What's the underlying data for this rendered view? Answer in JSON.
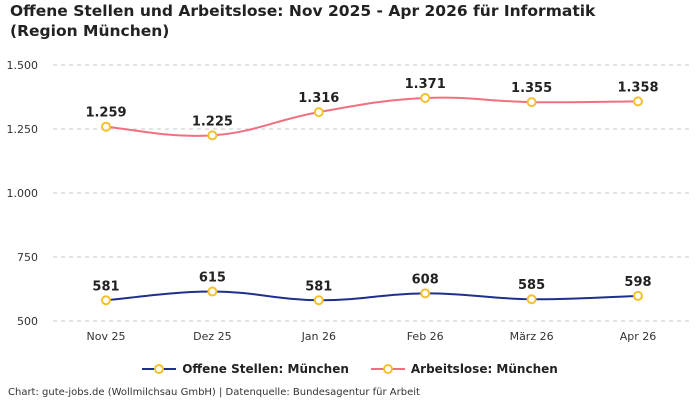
{
  "chart_data": {
    "type": "line",
    "title": "Offene Stellen und Arbeitslose: Nov 2025 - Apr 2026 für Informatik (Region München)",
    "categories": [
      "Nov 25",
      "Dez 25",
      "Jan 26",
      "Feb 26",
      "März 26",
      "Apr 26"
    ],
    "series": [
      {
        "name": "Offene Stellen: München",
        "values": [
          581,
          615,
          581,
          608,
          585,
          598
        ],
        "labels": [
          "581",
          "615",
          "581",
          "608",
          "585",
          "598"
        ],
        "color": "#1f2f8c"
      },
      {
        "name": "Arbeitslose: München",
        "values": [
          1259,
          1225,
          1316,
          1371,
          1355,
          1358
        ],
        "labels": [
          "1.259",
          "1.225",
          "1.316",
          "1.371",
          "1.355",
          "1.358"
        ],
        "color": "#f07080"
      }
    ],
    "yticks": [
      500,
      750,
      1000,
      1250,
      1500
    ],
    "ytick_labels": [
      "500",
      "750",
      "1.000",
      "1.250",
      "1.500"
    ],
    "ylim": [
      500,
      1500
    ],
    "grid": true,
    "legend_position": "bottom",
    "marker_color": "#f5c02e"
  },
  "source": "Chart: gute-jobs.de (Wollmilchsau GmbH) | Datenquelle: Bundesagentur für Arbeit"
}
